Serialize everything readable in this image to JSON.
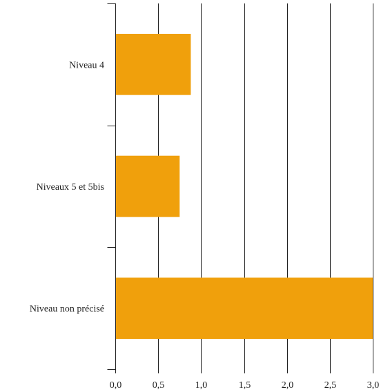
{
  "chart_data": {
    "type": "bar",
    "orientation": "horizontal",
    "categories": [
      "Niveau 4",
      "Niveaux 5 et 5bis",
      "Niveau non précisé"
    ],
    "values": [
      0.88,
      0.75,
      3.0
    ],
    "xlim": [
      0,
      3.0
    ],
    "x_ticks": [
      0,
      0.5,
      1.0,
      1.5,
      2.0,
      2.5,
      3.0
    ],
    "x_tick_labels": [
      "0,0",
      "0,5",
      "1,0",
      "1,5",
      "2,0",
      "2,5",
      "3,0"
    ],
    "title": "",
    "xlabel": "",
    "ylabel": "",
    "grid": "vertical",
    "legend": "none",
    "colors": {
      "bar": "#f0a00c",
      "grid": "#222222",
      "axis": "#222222"
    }
  }
}
